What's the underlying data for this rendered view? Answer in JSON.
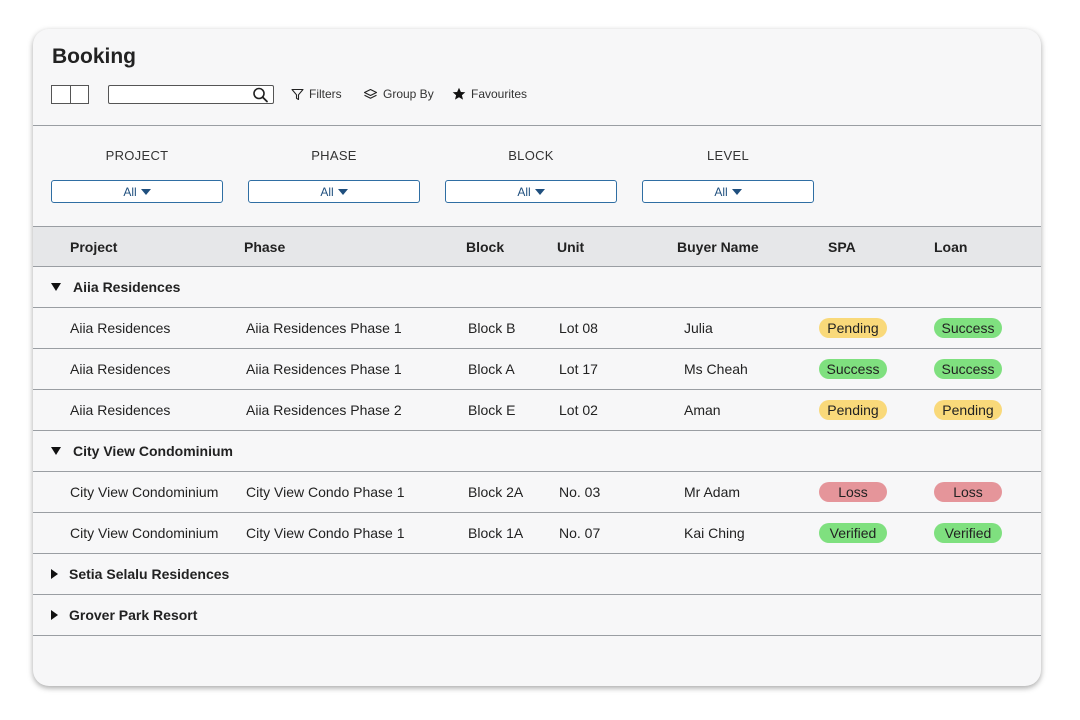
{
  "page": {
    "title": "Booking"
  },
  "toolbar": {
    "search_value": "",
    "filters_label": "Filters",
    "group_by_label": "Group By",
    "favourites_label": "Favourites"
  },
  "filters": [
    {
      "label": "PROJECT",
      "value": "All"
    },
    {
      "label": "PHASE",
      "value": "All"
    },
    {
      "label": "BLOCK",
      "value": "All"
    },
    {
      "label": "LEVEL",
      "value": "All"
    }
  ],
  "table": {
    "headers": [
      "Project",
      "Phase",
      "Block",
      "Unit",
      "Buyer Name",
      "SPA",
      "Loan"
    ],
    "groups": [
      {
        "name": "Aiia Residences",
        "expanded": true,
        "rows": [
          {
            "project": "Aiia Residences",
            "phase": "Aiia Residences Phase 1",
            "block": "Block B",
            "unit": "Lot 08",
            "buyer": "Julia",
            "spa": "Pending",
            "loan": "Success"
          },
          {
            "project": "Aiia Residences",
            "phase": "Aiia Residences Phase 1",
            "block": "Block A",
            "unit": "Lot 17",
            "buyer": "Ms Cheah",
            "spa": "Success",
            "loan": "Success"
          },
          {
            "project": "Aiia Residences",
            "phase": "Aiia Residences Phase 2",
            "block": "Block E",
            "unit": "Lot 02",
            "buyer": "Aman",
            "spa": "Pending",
            "loan": "Pending"
          }
        ]
      },
      {
        "name": "City View Condominium",
        "expanded": true,
        "rows": [
          {
            "project": "City View Condominium",
            "phase": "City View Condo Phase 1",
            "block": "Block 2A",
            "unit": "No. 03",
            "buyer": "Mr Adam",
            "spa": "Loss",
            "loan": "Loss"
          },
          {
            "project": "City View Condominium",
            "phase": "City View Condo Phase 1",
            "block": "Block 1A",
            "unit": "No. 07",
            "buyer": "Kai Ching",
            "spa": "Verified",
            "loan": "Verified"
          }
        ]
      },
      {
        "name": "Setia Selalu Residences",
        "expanded": false,
        "rows": []
      },
      {
        "name": "Grover Park Resort",
        "expanded": false,
        "rows": []
      }
    ]
  },
  "status_colors": {
    "Pending": "#f9d97a",
    "Success": "#7fe07f",
    "Loss": "#e5959a",
    "Verified": "#7fe07f"
  }
}
